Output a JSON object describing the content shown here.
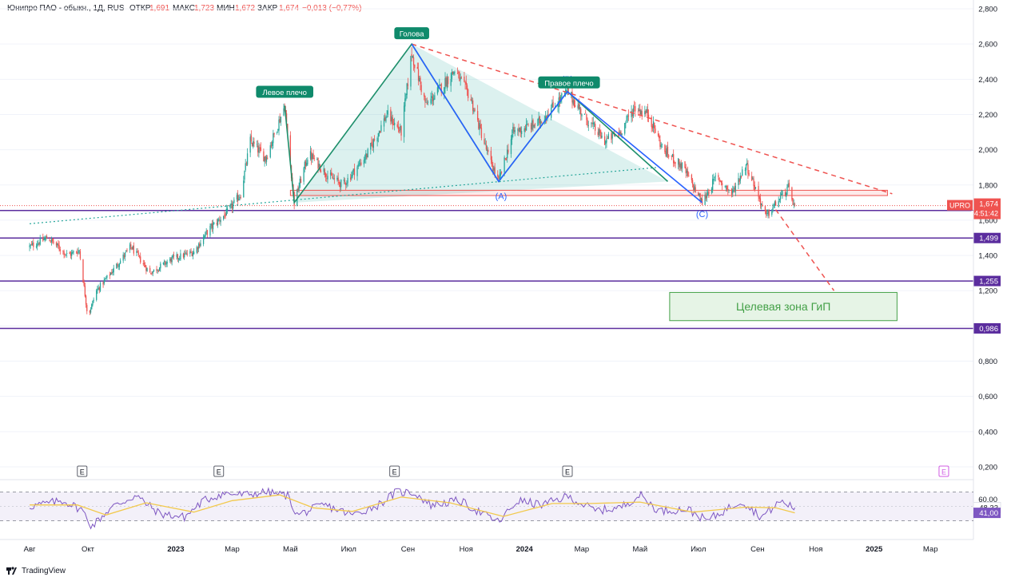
{
  "header": {
    "symbol": "Юнипро ПАО - обыкн., 1Д, RUS",
    "open_label": "ОТКР",
    "open": "1,691",
    "high_label": "МАКС",
    "high": "1,723",
    "low_label": "МИН",
    "low": "1,672",
    "close_label": "ЗАКР",
    "close": "1,674",
    "change": "−0,013 (−0,77%)"
  },
  "colors": {
    "up": "#26a69a",
    "down": "#ef5350",
    "accent": "#ef5350",
    "level": "#5b2d9e",
    "rsi": "#7e57c2",
    "rsi_ma": "#f2c94c",
    "target": "#43a047",
    "hs_green": "#1e8f6b",
    "abc_blue": "#2962ff"
  },
  "chart_data": [
    {
      "type": "candlestick",
      "title": "Юнипро ПАО - обыкн., 1Д, RUS",
      "x_axis_labels": [
        "Авг",
        "Окт",
        "2023",
        "Мар",
        "Май",
        "Июл",
        "Сен",
        "Ноя",
        "2024",
        "Мар",
        "Май",
        "Июл",
        "Сен",
        "Ноя",
        "2025",
        "Мар"
      ],
      "y_axis_ticks": [
        "2,800",
        "2,600",
        "2,400",
        "2,200",
        "2,000",
        "1,800",
        "1,600",
        "1,400",
        "1,200",
        "1,000",
        "0,800",
        "0,600",
        "0,400",
        "0,200"
      ],
      "ylim": [
        0.15,
        2.85
      ],
      "price_path": [
        [
          "2022-08-01",
          1.45
        ],
        [
          "2022-08-20",
          1.5
        ],
        [
          "2022-09-10",
          1.4
        ],
        [
          "2022-09-22",
          1.43
        ],
        [
          "2022-10-01",
          1.05
        ],
        [
          "2022-10-10",
          1.2
        ],
        [
          "2022-10-25",
          1.3
        ],
        [
          "2022-11-15",
          1.45
        ],
        [
          "2022-12-05",
          1.3
        ],
        [
          "2022-12-28",
          1.38
        ],
        [
          "2023-01-20",
          1.42
        ],
        [
          "2023-02-05",
          1.55
        ],
        [
          "2023-02-25",
          1.65
        ],
        [
          "2023-03-10",
          1.75
        ],
        [
          "2023-03-20",
          2.05
        ],
        [
          "2023-04-05",
          1.95
        ],
        [
          "2023-04-25",
          2.25
        ],
        [
          "2023-05-05",
          1.7
        ],
        [
          "2023-05-20",
          1.98
        ],
        [
          "2023-06-10",
          1.85
        ],
        [
          "2023-06-25",
          1.8
        ],
        [
          "2023-07-20",
          1.97
        ],
        [
          "2023-08-10",
          2.2
        ],
        [
          "2023-08-25",
          2.1
        ],
        [
          "2023-09-05",
          2.55
        ],
        [
          "2023-09-20",
          2.25
        ],
        [
          "2023-10-05",
          2.35
        ],
        [
          "2023-10-20",
          2.45
        ],
        [
          "2023-11-05",
          2.3
        ],
        [
          "2023-11-25",
          1.95
        ],
        [
          "2023-12-05",
          1.82
        ],
        [
          "2023-12-20",
          2.1
        ],
        [
          "2024-01-15",
          2.15
        ],
        [
          "2024-02-01",
          2.25
        ],
        [
          "2024-02-15",
          2.33
        ],
        [
          "2024-03-05",
          2.18
        ],
        [
          "2024-03-25",
          2.05
        ],
        [
          "2024-04-10",
          2.1
        ],
        [
          "2024-04-25",
          2.24
        ],
        [
          "2024-05-10",
          2.2
        ],
        [
          "2024-05-25",
          2.0
        ],
        [
          "2024-06-15",
          1.9
        ],
        [
          "2024-07-05",
          1.7
        ],
        [
          "2024-07-20",
          1.85
        ],
        [
          "2024-08-05",
          1.75
        ],
        [
          "2024-08-20",
          1.92
        ],
        [
          "2024-09-01",
          1.75
        ],
        [
          "2024-09-10",
          1.62
        ],
        [
          "2024-09-25",
          1.73
        ],
        [
          "2024-10-03",
          1.78
        ],
        [
          "2024-10-10",
          1.674
        ]
      ],
      "price_levels": [
        {
          "value": 1.655,
          "label": "1,655"
        },
        {
          "value": 1.499,
          "label": "1,499"
        },
        {
          "value": 1.255,
          "label": "1,255"
        },
        {
          "value": 0.986,
          "label": "0,986"
        }
      ],
      "last_price": {
        "ticker": "UPRO",
        "value": 1.674,
        "label": "1,674",
        "countdown": "04:51:42"
      },
      "annotations": {
        "left_shoulder": "Левое плечо",
        "head": "Голова",
        "right_shoulder": "Правое плечо",
        "wave_a": "(A)",
        "wave_b": "(B)",
        "wave_c": "(C)",
        "target_zone": "Целевая зона ГиП",
        "earnings_marker": "E"
      },
      "head_and_shoulders": [
        [
          "2023-04-25",
          2.25
        ],
        [
          "2023-05-05",
          1.7
        ],
        [
          "2023-09-05",
          2.6
        ],
        [
          "2023-12-05",
          1.82
        ],
        [
          "2024-02-15",
          2.33
        ],
        [
          "2024-05-30",
          1.82
        ]
      ],
      "abc_waves": [
        [
          "2023-09-05",
          2.6
        ],
        [
          "2023-12-05",
          1.82
        ],
        [
          "2024-02-15",
          2.33
        ],
        [
          "2024-07-05",
          1.7
        ]
      ],
      "descending_resistance": [
        [
          "2023-09-05",
          2.6
        ],
        [
          "2025-01-20",
          1.75
        ]
      ],
      "projection": [
        [
          "2024-09-20",
          1.66
        ],
        [
          "2024-11-20",
          1.2
        ]
      ],
      "neckline": [
        [
          "2022-08-01",
          1.58
        ],
        [
          "2024-05-20",
          1.9
        ]
      ],
      "resistance_zone": {
        "from": "2023-05-01",
        "to": "2025-01-15",
        "low": 1.74,
        "high": 1.77
      },
      "target_box": {
        "from": "2024-06-01",
        "to": "2025-01-25",
        "low": 1.03,
        "high": 1.19
      },
      "earnings_dates": [
        "2022-09-25",
        "2023-02-15",
        "2023-08-18",
        "2024-02-15"
      ],
      "upcoming_earnings_date": "2025-03-15"
    },
    {
      "type": "line",
      "title": "RSI",
      "y_axis_ticks": [
        "60,00"
      ],
      "upper_band": 70,
      "lower_band": 30,
      "rsi_path": [
        [
          "2022-08-01",
          50
        ],
        [
          "2022-09-05",
          58
        ],
        [
          "2022-09-25",
          45
        ],
        [
          "2022-10-05",
          22
        ],
        [
          "2022-10-25",
          48
        ],
        [
          "2022-11-20",
          65
        ],
        [
          "2022-12-15",
          40
        ],
        [
          "2023-01-10",
          35
        ],
        [
          "2023-01-30",
          58
        ],
        [
          "2023-02-20",
          68
        ],
        [
          "2023-03-15",
          66
        ],
        [
          "2023-04-05",
          70
        ],
        [
          "2023-04-28",
          65
        ],
        [
          "2023-05-08",
          38
        ],
        [
          "2023-06-05",
          52
        ],
        [
          "2023-07-05",
          38
        ],
        [
          "2023-08-01",
          52
        ],
        [
          "2023-08-20",
          70
        ],
        [
          "2023-09-08",
          69
        ],
        [
          "2023-09-25",
          52
        ],
        [
          "2023-10-25",
          58
        ],
        [
          "2023-11-15",
          42
        ],
        [
          "2023-12-05",
          28
        ],
        [
          "2023-12-25",
          58
        ],
        [
          "2024-01-20",
          52
        ],
        [
          "2024-02-15",
          64
        ],
        [
          "2024-03-15",
          44
        ],
        [
          "2024-04-10",
          48
        ],
        [
          "2024-05-01",
          66
        ],
        [
          "2024-05-20",
          44
        ],
        [
          "2024-06-20",
          46
        ],
        [
          "2024-07-10",
          30
        ],
        [
          "2024-08-15",
          58
        ],
        [
          "2024-09-05",
          35
        ],
        [
          "2024-09-25",
          57
        ],
        [
          "2024-10-10",
          48.33
        ]
      ],
      "rsi_ma_path": [
        [
          "2022-08-01",
          52
        ],
        [
          "2022-09-20",
          52
        ],
        [
          "2022-10-20",
          38
        ],
        [
          "2022-12-01",
          55
        ],
        [
          "2023-01-20",
          42
        ],
        [
          "2023-03-01",
          58
        ],
        [
          "2023-04-20",
          66
        ],
        [
          "2023-05-25",
          48
        ],
        [
          "2023-07-05",
          43
        ],
        [
          "2023-08-25",
          63
        ],
        [
          "2023-10-15",
          55
        ],
        [
          "2023-12-10",
          36
        ],
        [
          "2024-01-30",
          54
        ],
        [
          "2024-03-10",
          54
        ],
        [
          "2024-05-01",
          56
        ],
        [
          "2024-06-25",
          42
        ],
        [
          "2024-08-20",
          49
        ],
        [
          "2024-09-20",
          48
        ],
        [
          "2024-10-10",
          41.0
        ]
      ],
      "value_labels": {
        "rsi": "48,33",
        "rsi_ma": "41,00"
      }
    }
  ],
  "footer": {
    "brand": "TradingView"
  }
}
